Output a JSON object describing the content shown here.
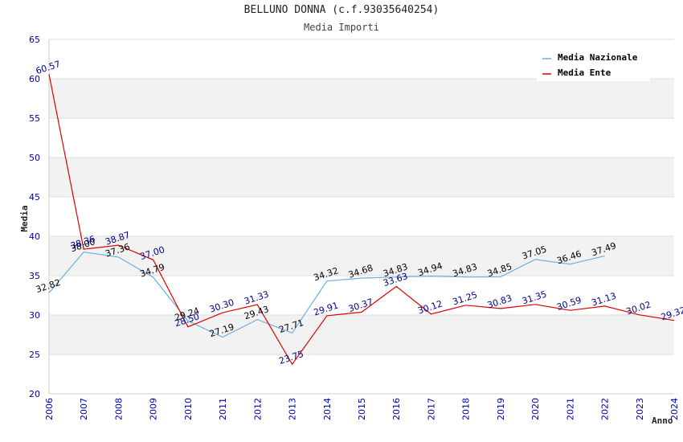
{
  "chart_data": {
    "type": "line",
    "title": "BELLUNO DONNA (c.f.93035640254)",
    "subtitle": "Media Importi",
    "xlabel": "Anno",
    "ylabel": "Media",
    "ylim": [
      20,
      65
    ],
    "yticks": [
      20,
      25,
      30,
      35,
      40,
      45,
      50,
      55,
      60,
      65
    ],
    "categories": [
      "2006",
      "2007",
      "2008",
      "2009",
      "2010",
      "2011",
      "2012",
      "2013",
      "2014",
      "2015",
      "2016",
      "2017",
      "2018",
      "2019",
      "2020",
      "2021",
      "2022",
      "2023",
      "2024"
    ],
    "grid": true,
    "legend_position": "top-right",
    "series": [
      {
        "name": "Media Nazionale",
        "color": "#6aaee0",
        "label_color": "#000000",
        "values": [
          32.82,
          38.0,
          37.36,
          34.79,
          29.24,
          27.19,
          29.43,
          27.71,
          34.32,
          34.68,
          34.83,
          34.94,
          34.83,
          34.85,
          37.05,
          36.46,
          37.49,
          null,
          null
        ],
        "labels": [
          "32.82",
          "38.00",
          "37.36",
          "34.79",
          "29.24",
          "27.19",
          "29.43",
          "27.71",
          "34.32",
          "34.68",
          "34.83",
          "34.94",
          "34.83",
          "34.85",
          "37.05",
          "36.46",
          "37.49",
          null,
          null
        ]
      },
      {
        "name": "Media Ente",
        "color": "#e00000",
        "label_color": "#00008b",
        "values": [
          60.57,
          38.36,
          38.87,
          37.0,
          28.5,
          30.3,
          31.33,
          23.75,
          29.91,
          30.37,
          33.63,
          30.12,
          31.25,
          30.83,
          31.35,
          30.59,
          31.13,
          30.02,
          29.32
        ],
        "labels": [
          "60.57",
          "38.36",
          "38.87",
          "37.00",
          "28.50",
          "30.30",
          "31.33",
          "23.75",
          "29.91",
          "30.37",
          "33.63",
          "30.12",
          "31.25",
          "30.83",
          "31.35",
          "30.59",
          "31.13",
          "30.02",
          "29.32"
        ]
      }
    ]
  }
}
